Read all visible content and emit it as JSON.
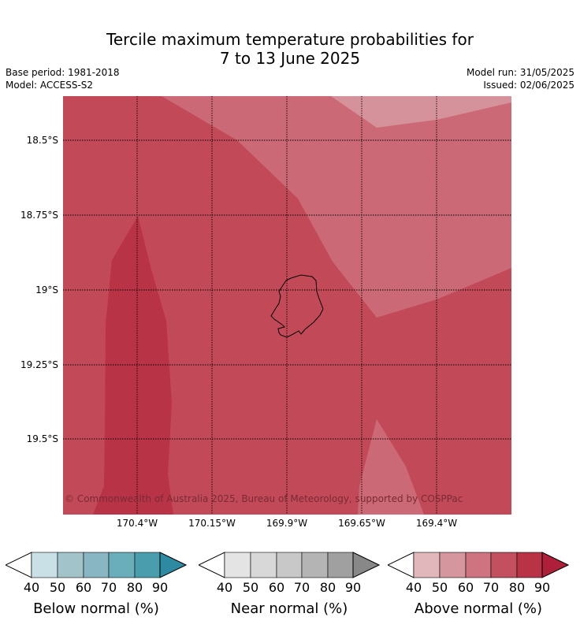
{
  "title_line1": "Tercile maximum temperature probabilities for",
  "title_line2": "7 to 13 June 2025",
  "meta": {
    "base_period": "Base period: 1981-2018",
    "model": "Model: ACCESS-S2",
    "model_run": "Model run: 31/05/2025",
    "issued": "Issued: 02/06/2025"
  },
  "map": {
    "y_labels": [
      "18.5°S",
      "18.75°S",
      "19°S",
      "19.25°S",
      "19.5°S"
    ],
    "x_labels": [
      "170.4°W",
      "170.15°W",
      "169.9°W",
      "169.65°W",
      "169.4°W"
    ],
    "copyright": "© Commonwealth of Australia 2025, Bureau of Meteorology, supported by COSPPac",
    "colors": {
      "above_70_80": "#c24a58",
      "above_80_90": "#b93347",
      "above_60_70": "#cb6a76",
      "above_50_60": "#d6929b"
    }
  },
  "colorbars": [
    {
      "label": "Below normal (%)",
      "ticks": [
        "40",
        "50",
        "60",
        "70",
        "80",
        "90"
      ],
      "colors": [
        "#c8e0e6",
        "#a3c3ca",
        "#88b6c3",
        "#6aaebc",
        "#4a9dad",
        "#2e8aa1"
      ]
    },
    {
      "label": "Near normal (%)",
      "ticks": [
        "40",
        "50",
        "60",
        "70",
        "80",
        "90"
      ],
      "colors": [
        "#e4e4e4",
        "#d8d8d8",
        "#c8c8c8",
        "#b4b4b4",
        "#a0a0a0",
        "#888888"
      ]
    },
    {
      "label": "Above normal (%)",
      "ticks": [
        "40",
        "50",
        "60",
        "70",
        "80",
        "90"
      ],
      "colors": [
        "#e2b7bc",
        "#d6969d",
        "#cd7480",
        "#c2505e",
        "#b93347",
        "#ae1f3a"
      ]
    }
  ]
}
